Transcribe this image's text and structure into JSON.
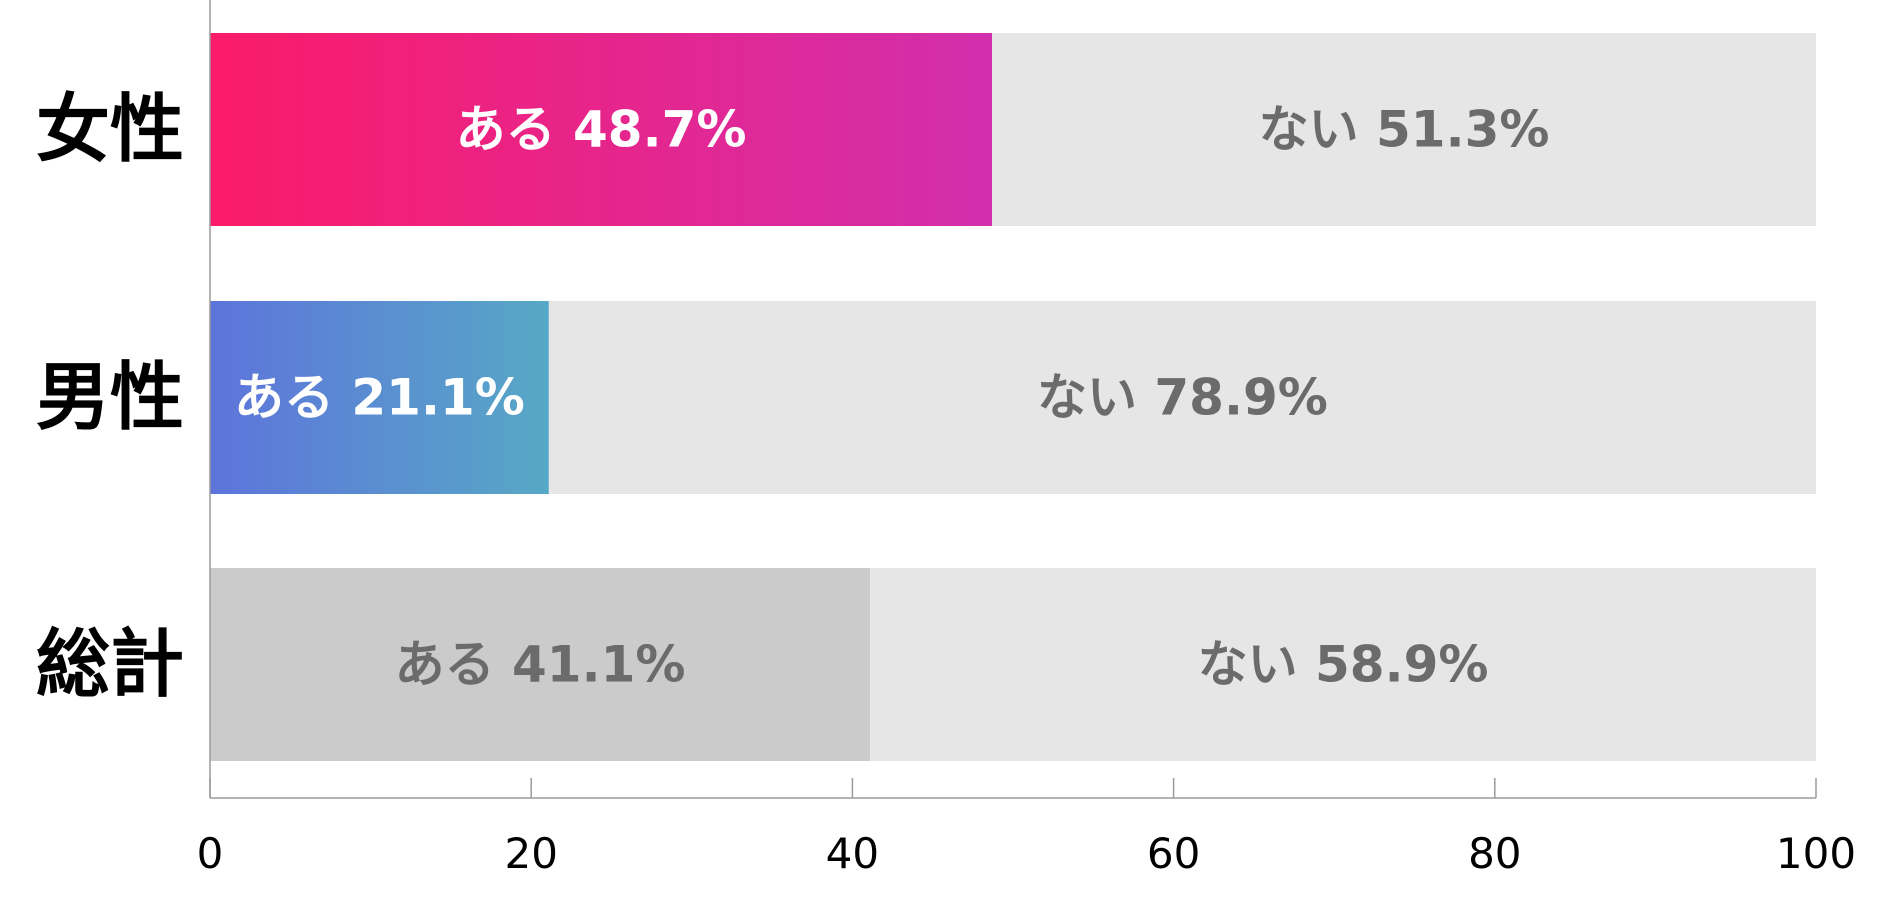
{
  "chart_data": {
    "type": "bar",
    "orientation": "horizontal",
    "stacked": true,
    "categories": [
      "女性",
      "男性",
      "総計"
    ],
    "series": [
      {
        "key": "aru",
        "label_prefix": "ある",
        "values": [
          48.7,
          21.1,
          41.1
        ],
        "colors": [
          {
            "from": "#fb1b69",
            "to": "#d22fad"
          },
          {
            "from": "#5d74db",
            "to": "#57a8c6"
          },
          {
            "from": "#cbcbcb",
            "to": "#cbcbcb"
          }
        ],
        "label_colors": [
          "#ffffff",
          "#ffffff",
          "#6b6b6b"
        ]
      },
      {
        "key": "nai",
        "label_prefix": "ない",
        "values": [
          51.3,
          78.9,
          58.9
        ],
        "colors": [
          {
            "from": "#e6e6e6",
            "to": "#e6e6e6"
          },
          {
            "from": "#e6e6e6",
            "to": "#e6e6e6"
          },
          {
            "from": "#e6e6e6",
            "to": "#e6e6e6"
          }
        ],
        "label_colors": [
          "#6b6b6b",
          "#6b6b6b",
          "#6b6b6b"
        ]
      }
    ],
    "value_suffix": "%",
    "xlim": [
      0,
      100
    ],
    "xticks": [
      0,
      20,
      40,
      60,
      80,
      100
    ],
    "grid": false,
    "legend": "none"
  }
}
